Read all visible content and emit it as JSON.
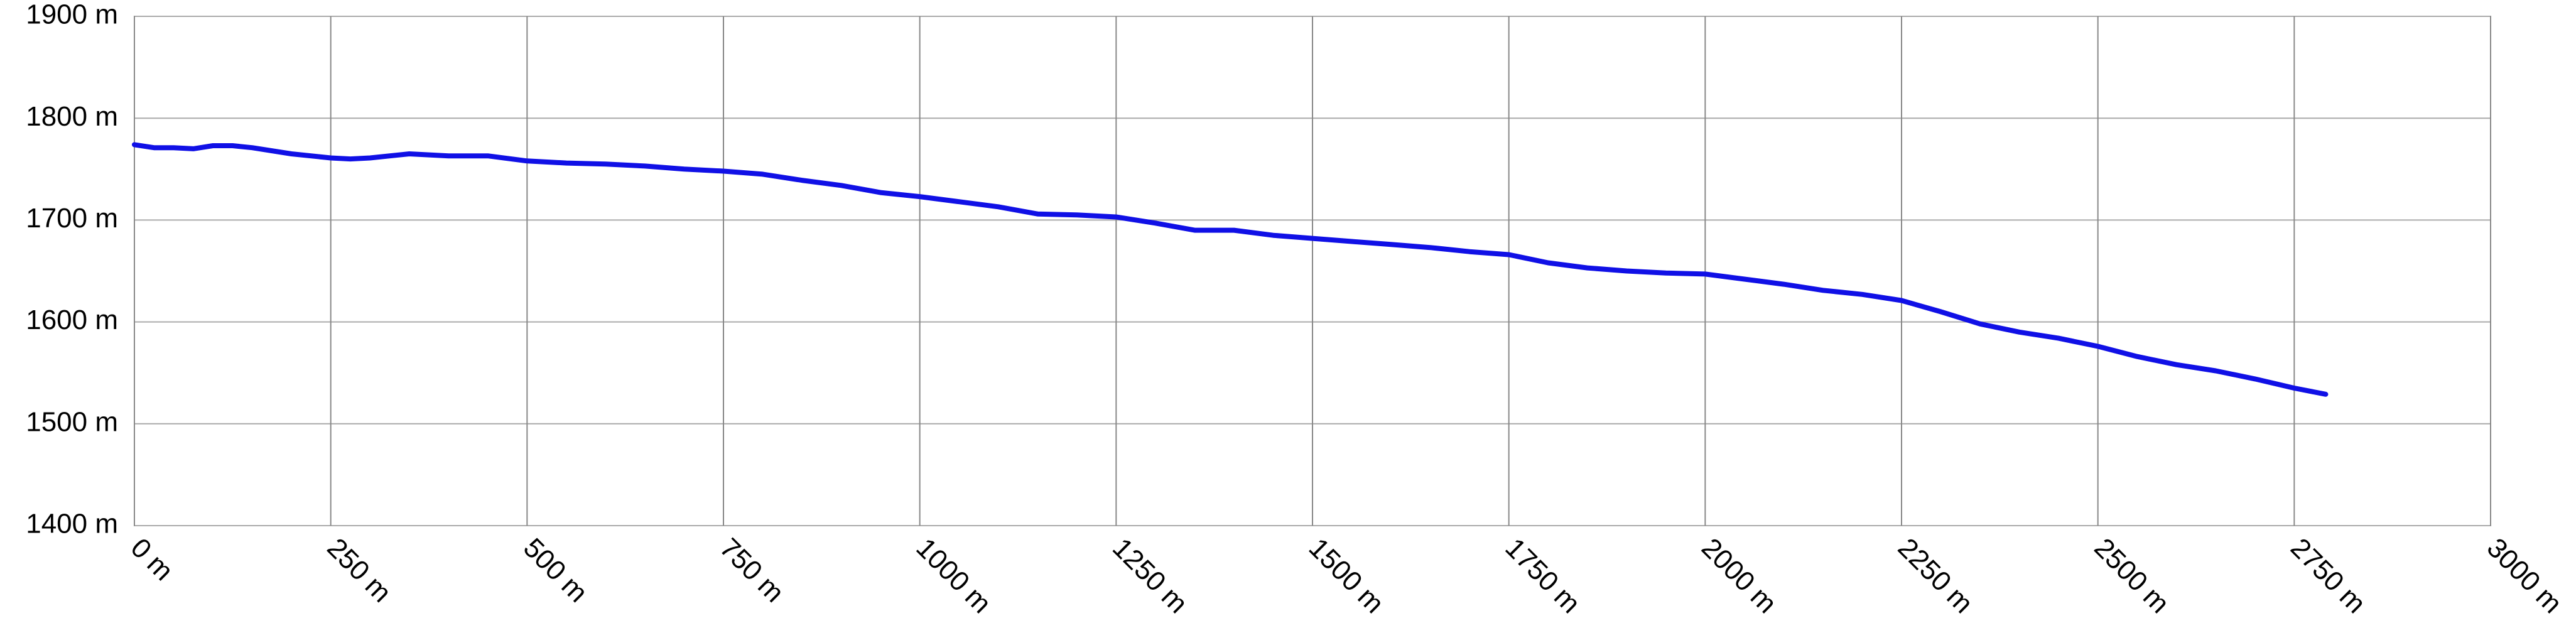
{
  "chart_data": {
    "type": "line",
    "x": [
      0,
      25,
      50,
      75,
      100,
      125,
      150,
      200,
      250,
      275,
      300,
      350,
      400,
      450,
      500,
      550,
      600,
      650,
      700,
      750,
      800,
      850,
      900,
      950,
      1000,
      1050,
      1100,
      1150,
      1200,
      1250,
      1300,
      1350,
      1400,
      1450,
      1500,
      1550,
      1600,
      1650,
      1700,
      1750,
      1800,
      1850,
      1900,
      1950,
      2000,
      2050,
      2100,
      2150,
      2200,
      2250,
      2300,
      2350,
      2400,
      2450,
      2500,
      2550,
      2600,
      2650,
      2700,
      2750,
      2790
    ],
    "values": [
      1774,
      1771,
      1771,
      1770,
      1773,
      1773,
      1771,
      1765,
      1761,
      1760,
      1761,
      1765,
      1763,
      1763,
      1758,
      1756,
      1755,
      1753,
      1750,
      1748,
      1745,
      1739,
      1734,
      1727,
      1723,
      1718,
      1713,
      1706,
      1705,
      1703,
      1697,
      1690,
      1690,
      1685,
      1682,
      1679,
      1676,
      1673,
      1669,
      1666,
      1658,
      1653,
      1650,
      1648,
      1647,
      1642,
      1637,
      1631,
      1627,
      1621,
      1610,
      1598,
      1590,
      1584,
      1576,
      1566,
      1558,
      1552,
      1544,
      1535,
      1529
    ],
    "color": "#1010e6",
    "xlim": [
      0,
      3000
    ],
    "xticks": [
      {
        "value": 0,
        "label": "0 m"
      },
      {
        "value": 250,
        "label": "250 m"
      },
      {
        "value": 500,
        "label": "500 m"
      },
      {
        "value": 750,
        "label": "750 m"
      },
      {
        "value": 1000,
        "label": "1000 m"
      },
      {
        "value": 1250,
        "label": "1250 m"
      },
      {
        "value": 1500,
        "label": "1500 m"
      },
      {
        "value": 1750,
        "label": "1750 m"
      },
      {
        "value": 2000,
        "label": "2000 m"
      },
      {
        "value": 2250,
        "label": "2250 m"
      },
      {
        "value": 2500,
        "label": "2500 m"
      },
      {
        "value": 2750,
        "label": "2750 m"
      },
      {
        "value": 3000,
        "label": "3000 m"
      }
    ],
    "ylim": [
      1400,
      1900
    ],
    "yticks": [
      {
        "value": 1400,
        "label": "1400 m"
      },
      {
        "value": 1500,
        "label": "1500 m"
      },
      {
        "value": 1600,
        "label": "1600 m"
      },
      {
        "value": 1700,
        "label": "1700 m"
      },
      {
        "value": 1800,
        "label": "1800 m"
      },
      {
        "value": 1900,
        "label": "1900 m"
      }
    ],
    "grid": true
  }
}
